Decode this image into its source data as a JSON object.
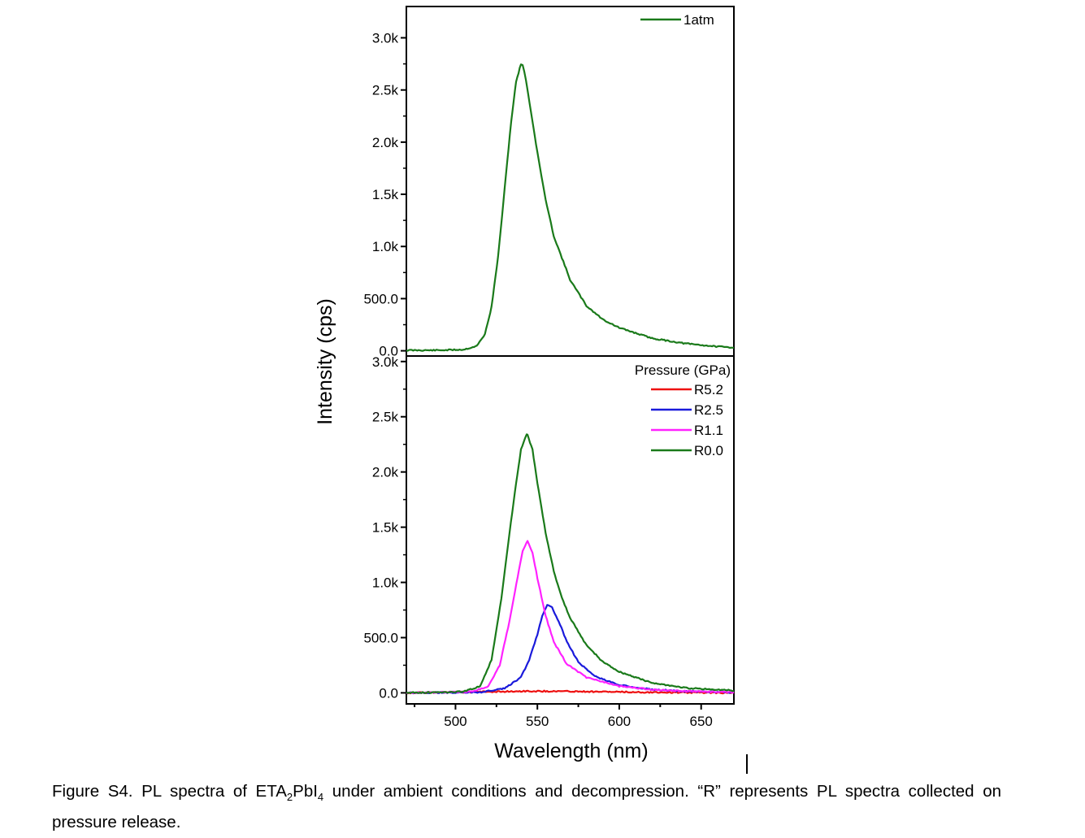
{
  "chart_data": [
    {
      "type": "line",
      "title": "",
      "xlabel": "",
      "ylabel": "Intensity (cps)",
      "xlim": [
        470,
        670
      ],
      "ylim": [
        -50,
        3300
      ],
      "y_ticks": [
        0,
        500,
        1000,
        1500,
        2000,
        2500,
        3000
      ],
      "y_tick_labels": [
        "0.0",
        "500.0",
        "1.0k",
        "1.5k",
        "2.0k",
        "2.5k",
        "3.0k"
      ],
      "legend_title": "",
      "legend_position": "top-right",
      "series": [
        {
          "name": "1atm",
          "color": "#1a7a1a",
          "x": [
            470,
            490,
            505,
            513,
            518,
            522,
            526,
            530,
            534,
            537,
            540,
            541,
            543,
            546,
            550,
            555,
            560,
            570,
            580,
            590,
            600,
            620,
            640,
            660,
            670
          ],
          "y": [
            5,
            5,
            12,
            45,
            160,
            420,
            900,
            1550,
            2200,
            2580,
            2750,
            2740,
            2600,
            2300,
            1900,
            1450,
            1100,
            680,
            430,
            300,
            220,
            120,
            70,
            40,
            30
          ]
        }
      ]
    },
    {
      "type": "line",
      "title": "",
      "xlabel": "Wavelength (nm)",
      "ylabel": "Intensity (cps)",
      "xlim": [
        470,
        670
      ],
      "ylim": [
        -100,
        3050
      ],
      "x_ticks": [
        500,
        550,
        600,
        650
      ],
      "x_tick_labels": [
        "500",
        "550",
        "600",
        "650"
      ],
      "y_ticks": [
        0,
        500,
        1000,
        1500,
        2000,
        2500,
        3000
      ],
      "y_tick_labels": [
        "0.0",
        "500.0",
        "1.0k",
        "1.5k",
        "2.0k",
        "2.5k",
        "3.0k"
      ],
      "legend_title": "Pressure (GPa)",
      "legend_position": "top-right",
      "series": [
        {
          "name": "R5.2",
          "color": "#ee1111",
          "x": [
            470,
            500,
            520,
            540,
            560,
            580,
            600,
            620,
            640,
            670
          ],
          "y": [
            0,
            5,
            10,
            15,
            15,
            12,
            8,
            5,
            3,
            0
          ]
        },
        {
          "name": "R2.5",
          "color": "#1a1adb",
          "x": [
            470,
            515,
            530,
            540,
            545,
            550,
            553,
            556,
            559,
            563,
            568,
            575,
            585,
            600,
            620,
            640,
            670
          ],
          "y": [
            0,
            5,
            40,
            140,
            300,
            530,
            700,
            800,
            770,
            650,
            460,
            280,
            150,
            70,
            30,
            15,
            5
          ]
        },
        {
          "name": "R1.1",
          "color": "#ff22ff",
          "x": [
            470,
            510,
            520,
            527,
            533,
            538,
            541,
            544,
            547,
            550,
            555,
            560,
            568,
            580,
            600,
            620,
            640,
            670
          ],
          "y": [
            0,
            10,
            60,
            250,
            650,
            1050,
            1290,
            1380,
            1270,
            1040,
            700,
            460,
            260,
            140,
            60,
            30,
            15,
            5
          ]
        },
        {
          "name": "R0.0",
          "color": "#1a7a1a",
          "x": [
            470,
            505,
            515,
            522,
            528,
            533,
            537,
            540,
            543,
            544,
            547,
            550,
            555,
            560,
            565,
            570,
            580,
            590,
            600,
            620,
            640,
            670
          ],
          "y": [
            0,
            10,
            60,
            300,
            850,
            1450,
            1900,
            2200,
            2330,
            2340,
            2200,
            1900,
            1450,
            1100,
            860,
            680,
            430,
            280,
            190,
            90,
            45,
            20
          ]
        }
      ]
    }
  ],
  "caption": {
    "line1_prefix": "Figure S4. PL spectra of ETA",
    "sub1": "2",
    "line1_mid": "PbI",
    "sub2": "4",
    "line1_suffix": " under ambient conditions and decompression. “R” represents PL spectra collected on pressure release."
  }
}
